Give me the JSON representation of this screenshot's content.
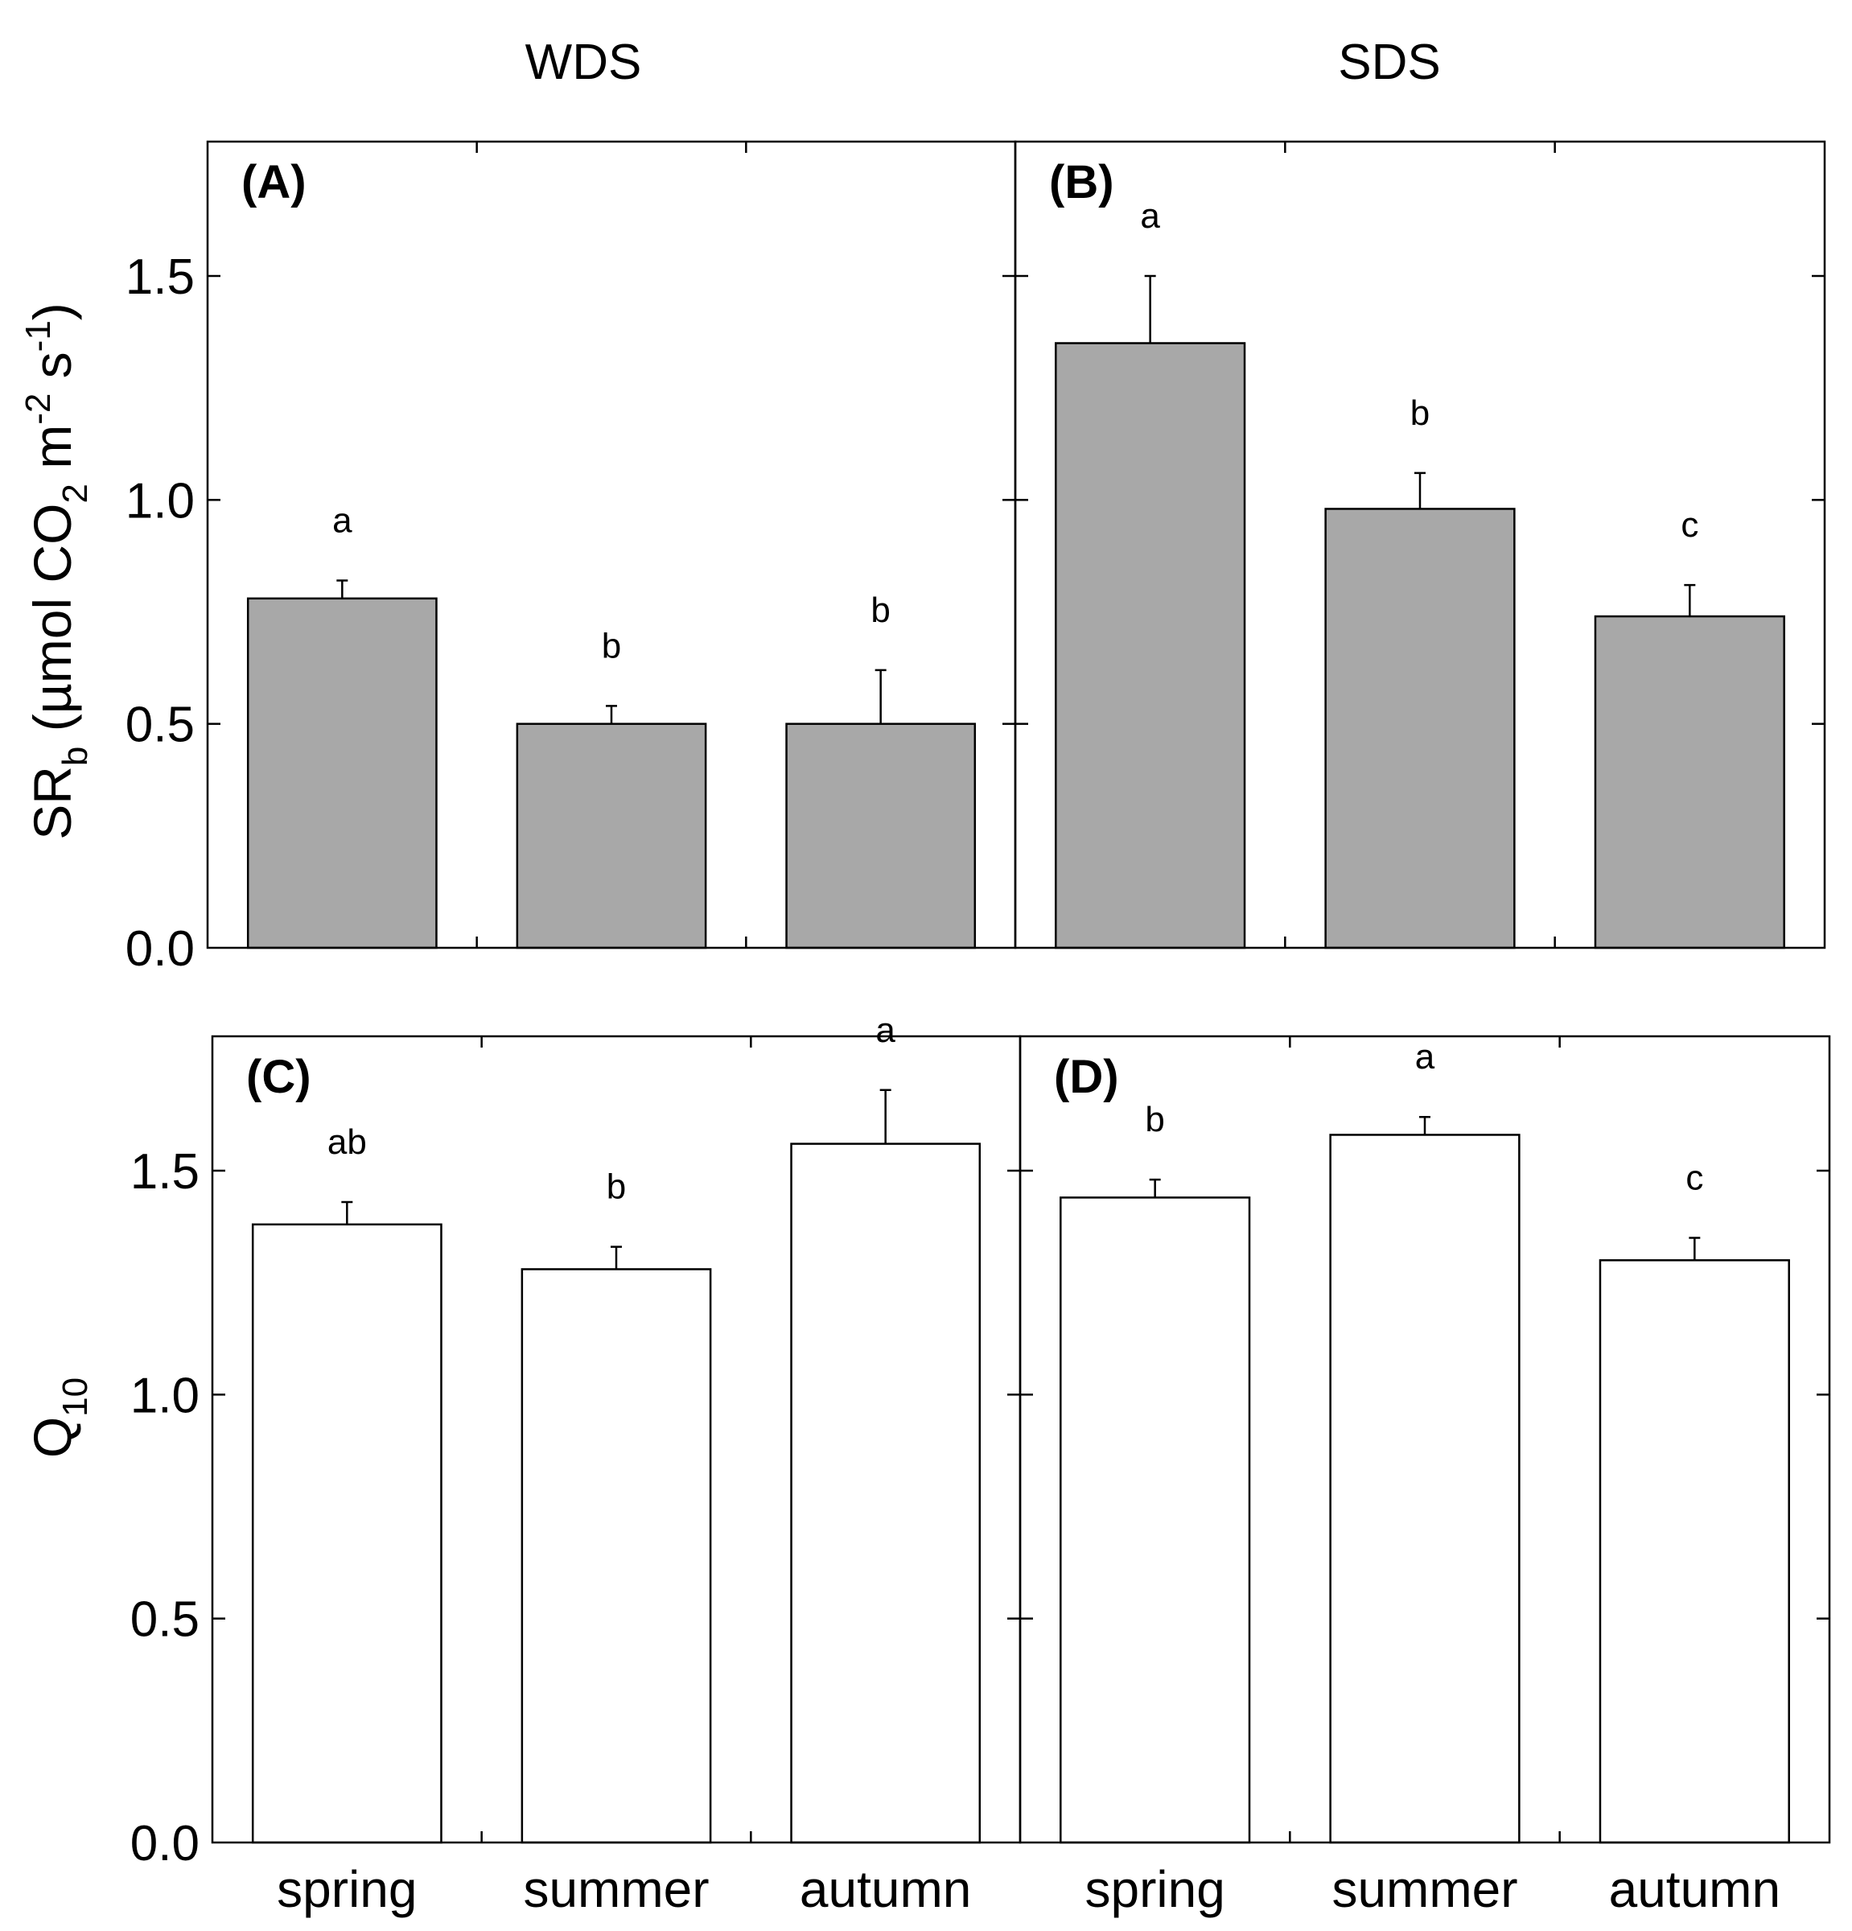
{
  "columns": [
    "WDS",
    "SDS"
  ],
  "categories": [
    "spring",
    "summer",
    "autumn"
  ],
  "y_ticks": [
    "0.0",
    "0.5",
    "1.0",
    "1.5"
  ],
  "rows": [
    {
      "ylabel": {
        "main": "SR",
        "sub": "b",
        "unit_a": " (µmol CO",
        "unit_sub": "2",
        "unit_b": " m",
        "sup1": "-2",
        "unit_c": " s",
        "sup2": "-1",
        "unit_d": ")"
      }
    },
    {
      "ylabel": {
        "main": "Q",
        "sub": "10"
      }
    }
  ],
  "chart_data": [
    {
      "panel": "(A)",
      "type": "bar",
      "group": "WDS",
      "metric": "SRb",
      "ylabel": "SRb (µmol CO2 m-2 s-1)",
      "categories": [
        "spring",
        "summer",
        "autumn"
      ],
      "values": [
        0.78,
        0.5,
        0.5
      ],
      "errors": [
        0.04,
        0.04,
        0.12
      ],
      "letters": [
        "a",
        "b",
        "b"
      ],
      "ylim": [
        0,
        1.8
      ],
      "bar_color": "#a8a8a8"
    },
    {
      "panel": "(B)",
      "type": "bar",
      "group": "SDS",
      "metric": "SRb",
      "ylabel": "SRb (µmol CO2 m-2 s-1)",
      "categories": [
        "spring",
        "summer",
        "autumn"
      ],
      "values": [
        1.35,
        0.98,
        0.74
      ],
      "errors": [
        0.15,
        0.08,
        0.07
      ],
      "letters": [
        "a",
        "b",
        "c"
      ],
      "ylim": [
        0,
        1.8
      ],
      "bar_color": "#a8a8a8"
    },
    {
      "panel": "(C)",
      "type": "bar",
      "group": "WDS",
      "metric": "Q10",
      "ylabel": "Q10",
      "categories": [
        "spring",
        "summer",
        "autumn"
      ],
      "values": [
        1.38,
        1.28,
        1.56
      ],
      "errors": [
        0.05,
        0.05,
        0.12
      ],
      "letters": [
        "ab",
        "b",
        "a"
      ],
      "ylim": [
        0,
        1.8
      ],
      "bar_color": "#ffffff"
    },
    {
      "panel": "(D)",
      "type": "bar",
      "group": "SDS",
      "metric": "Q10",
      "ylabel": "Q10",
      "categories": [
        "spring",
        "summer",
        "autumn"
      ],
      "values": [
        1.44,
        1.58,
        1.3
      ],
      "errors": [
        0.04,
        0.04,
        0.05
      ],
      "letters": [
        "b",
        "a",
        "c"
      ],
      "ylim": [
        0,
        1.8
      ],
      "bar_color": "#ffffff"
    }
  ]
}
